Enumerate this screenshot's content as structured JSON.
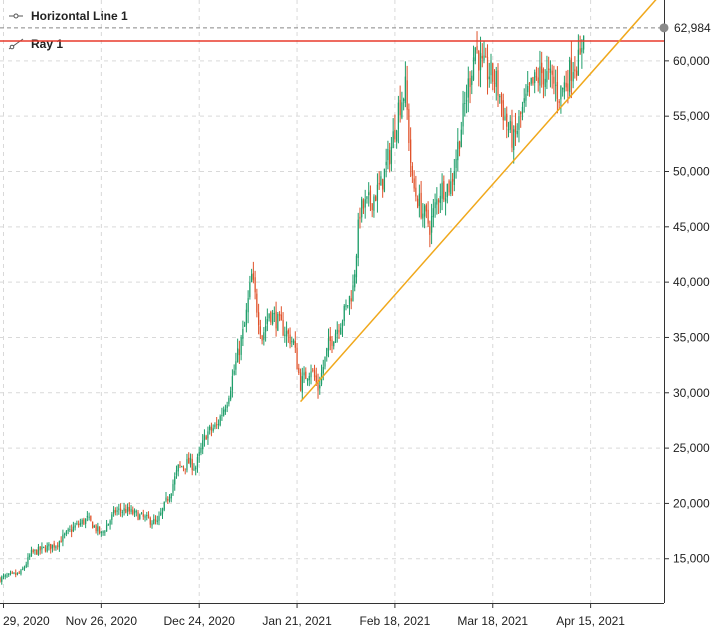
{
  "legend": {
    "horizontal_line": "Horizontal Line 1",
    "ray": "Ray 1"
  },
  "last_price_label": "62,984",
  "colors": {
    "up": "#1f9e6a",
    "down": "#e0522a",
    "ray": "#e83a2c",
    "trendline": "#f0a81c",
    "grid": "#d9d9d9",
    "hline": "#888888"
  },
  "chart_data": {
    "type": "candlestick",
    "title": "",
    "xlabel": "",
    "ylabel": "",
    "ylim": [
      11000,
      65500
    ],
    "y_ticks": [
      {
        "value": 15000,
        "label": "15,000"
      },
      {
        "value": 20000,
        "label": "20,000"
      },
      {
        "value": 25000,
        "label": "25,000"
      },
      {
        "value": 30000,
        "label": "30,000"
      },
      {
        "value": 35000,
        "label": "35,000"
      },
      {
        "value": 40000,
        "label": "40,000"
      },
      {
        "value": 45000,
        "label": "45,000"
      },
      {
        "value": 50000,
        "label": "50,000"
      },
      {
        "value": 55000,
        "label": "55,000"
      },
      {
        "value": 60000,
        "label": "60,000"
      }
    ],
    "x_range": [
      "2020-10-28",
      "2021-05-06"
    ],
    "x_ticks": [
      {
        "date": "2020-10-29",
        "label": "29, 2020"
      },
      {
        "date": "2020-11-26",
        "label": "Nov 26, 2020"
      },
      {
        "date": "2020-12-24",
        "label": "Dec 24, 2020"
      },
      {
        "date": "2021-01-21",
        "label": "Jan 21, 2021"
      },
      {
        "date": "2021-02-18",
        "label": "Feb 18, 2021"
      },
      {
        "date": "2021-03-18",
        "label": "Mar 18, 2021"
      },
      {
        "date": "2021-04-15",
        "label": "Apr 15, 2021"
      }
    ],
    "grid": true,
    "start_date": "2020-10-28",
    "horizontal_line": {
      "name": "Horizontal Line 1",
      "value": 62984
    },
    "ray": {
      "name": "Ray 1",
      "value": 61800
    },
    "trendline": {
      "from": {
        "date": "2021-01-22",
        "value": 29200
      },
      "to": {
        "date": "2021-05-05",
        "value": 66000
      }
    },
    "anchors": [
      [
        "2020-10-28",
        13200
      ],
      [
        "2020-11-03",
        13700
      ],
      [
        "2020-11-06",
        15500
      ],
      [
        "2020-11-13",
        16300
      ],
      [
        "2020-11-18",
        17800
      ],
      [
        "2020-11-22",
        18600
      ],
      [
        "2020-11-26",
        17200
      ],
      [
        "2020-11-30",
        19300
      ],
      [
        "2020-12-03",
        19400
      ],
      [
        "2020-12-08",
        18700
      ],
      [
        "2020-12-12",
        18200
      ],
      [
        "2020-12-16",
        21300
      ],
      [
        "2020-12-18",
        23200
      ],
      [
        "2020-12-21",
        23700
      ],
      [
        "2020-12-23",
        23300
      ],
      [
        "2020-12-26",
        26300
      ],
      [
        "2020-12-29",
        27000
      ],
      [
        "2021-01-01",
        29400
      ],
      [
        "2021-01-03",
        32000
      ],
      [
        "2021-01-06",
        36000
      ],
      [
        "2021-01-08",
        40500
      ],
      [
        "2021-01-11",
        35000
      ],
      [
        "2021-01-13",
        37300
      ],
      [
        "2021-01-15",
        36600
      ],
      [
        "2021-01-17",
        35800
      ],
      [
        "2021-01-20",
        34500
      ],
      [
        "2021-01-22",
        30800
      ],
      [
        "2021-01-25",
        32300
      ],
      [
        "2021-01-27",
        30400
      ],
      [
        "2021-01-30",
        34300
      ],
      [
        "2021-02-03",
        36800
      ],
      [
        "2021-02-06",
        39400
      ],
      [
        "2021-02-08",
        46500
      ],
      [
        "2021-02-11",
        47300
      ],
      [
        "2021-02-14",
        48700
      ],
      [
        "2021-02-17",
        52200
      ],
      [
        "2021-02-19",
        55800
      ],
      [
        "2021-02-21",
        57500
      ],
      [
        "2021-02-23",
        48800
      ],
      [
        "2021-02-26",
        46300
      ],
      [
        "2021-02-28",
        45100
      ],
      [
        "2021-03-03",
        48400
      ],
      [
        "2021-03-06",
        48800
      ],
      [
        "2021-03-08",
        52300
      ],
      [
        "2021-03-11",
        57800
      ],
      [
        "2021-03-13",
        61300
      ],
      [
        "2021-03-15",
        59300
      ],
      [
        "2021-03-17",
        58900
      ],
      [
        "2021-03-19",
        58100
      ],
      [
        "2021-03-22",
        54200
      ],
      [
        "2021-03-24",
        52700
      ],
      [
        "2021-03-26",
        55000
      ],
      [
        "2021-03-29",
        57600
      ],
      [
        "2021-04-01",
        58900
      ],
      [
        "2021-04-04",
        58200
      ],
      [
        "2021-04-06",
        57000
      ],
      [
        "2021-04-08",
        58100
      ],
      [
        "2021-04-10",
        59800
      ],
      [
        "2021-04-12",
        59900
      ],
      [
        "2021-04-13",
        63300
      ]
    ]
  }
}
